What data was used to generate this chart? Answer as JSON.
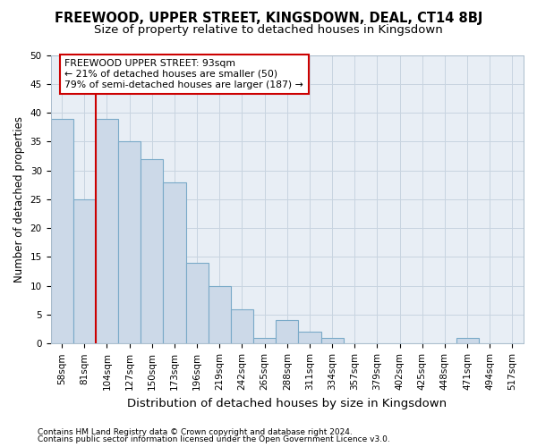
{
  "title": "FREEWOOD, UPPER STREET, KINGSDOWN, DEAL, CT14 8BJ",
  "subtitle": "Size of property relative to detached houses in Kingsdown",
  "xlabel": "Distribution of detached houses by size in Kingsdown",
  "ylabel": "Number of detached properties",
  "categories": [
    "58sqm",
    "81sqm",
    "104sqm",
    "127sqm",
    "150sqm",
    "173sqm",
    "196sqm",
    "219sqm",
    "242sqm",
    "265sqm",
    "288sqm",
    "311sqm",
    "334sqm",
    "357sqm",
    "379sqm",
    "402sqm",
    "425sqm",
    "448sqm",
    "471sqm",
    "494sqm",
    "517sqm"
  ],
  "values": [
    39,
    25,
    39,
    35,
    32,
    28,
    14,
    10,
    6,
    1,
    4,
    2,
    1,
    0,
    0,
    0,
    0,
    0,
    1,
    0,
    0
  ],
  "bar_color": "#ccd9e8",
  "bar_edge_color": "#7aaac8",
  "vline_x_index": 2.0,
  "vline_color": "#cc0000",
  "annotation_text": "FREEWOOD UPPER STREET: 93sqm\n← 21% of detached houses are smaller (50)\n79% of semi-detached houses are larger (187) →",
  "annotation_box_color": "#ffffff",
  "annotation_box_edge": "#cc0000",
  "ylim": [
    0,
    50
  ],
  "yticks": [
    0,
    5,
    10,
    15,
    20,
    25,
    30,
    35,
    40,
    45,
    50
  ],
  "title_fontsize": 10.5,
  "subtitle_fontsize": 9.5,
  "xlabel_fontsize": 9.5,
  "ylabel_fontsize": 8.5,
  "tick_fontsize": 7.5,
  "annot_fontsize": 7.8,
  "footer_line1": "Contains HM Land Registry data © Crown copyright and database right 2024.",
  "footer_line2": "Contains public sector information licensed under the Open Government Licence v3.0.",
  "background_color": "#ffffff",
  "grid_color": "#c8d4e0",
  "axes_bg": "#e8eef5"
}
